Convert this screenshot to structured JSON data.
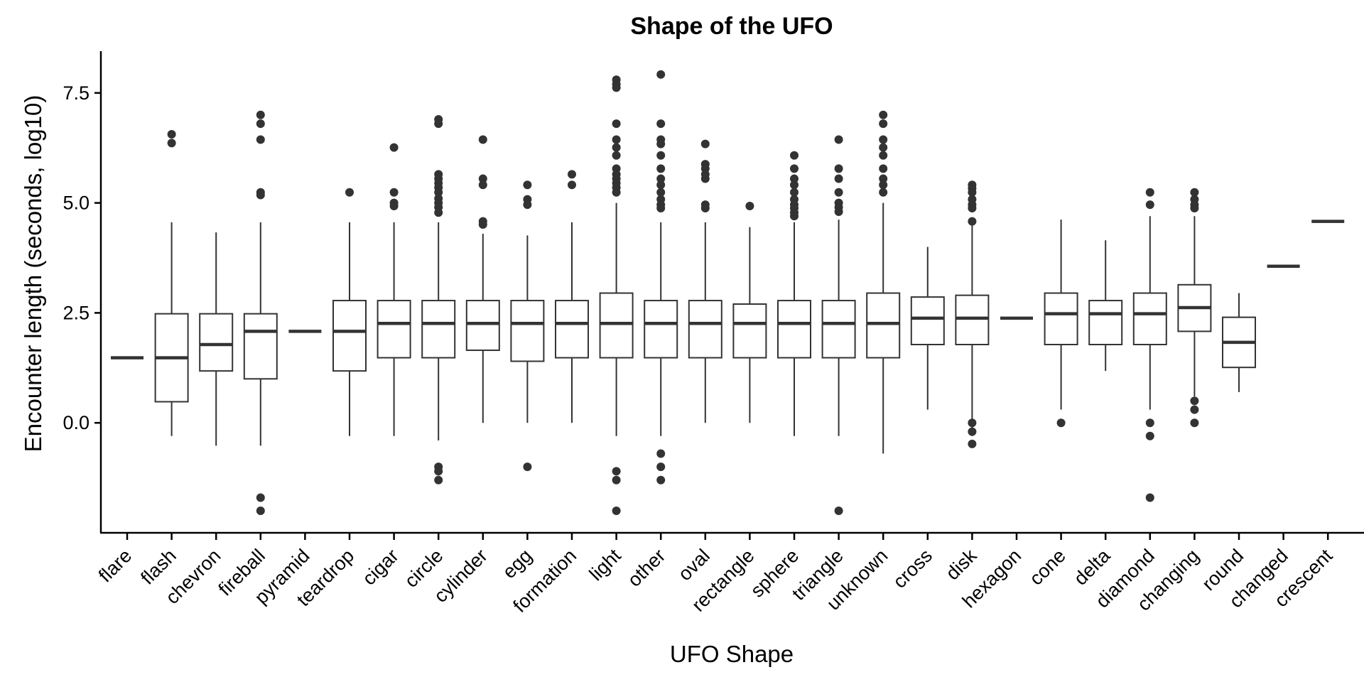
{
  "chart_data": {
    "type": "boxplot",
    "title": "Shape of the UFO",
    "xlabel": "UFO Shape",
    "ylabel": "Encounter length (seconds, log10)",
    "ylim": [
      -2.5,
      8.45
    ],
    "yticks": [
      0.0,
      2.5,
      5.0,
      7.5
    ],
    "ytick_labels": [
      "0.0",
      "2.5",
      "5.0",
      "7.5"
    ],
    "grid": false,
    "colors": {
      "box_fill": "#ffffff",
      "box_stroke": "#333333",
      "outlier": "#333333",
      "axis": "#000000"
    },
    "categories": [
      "flare",
      "flash",
      "chevron",
      "fireball",
      "pyramid",
      "teardrop",
      "cigar",
      "circle",
      "cylinder",
      "egg",
      "formation",
      "light",
      "other",
      "oval",
      "rectangle",
      "sphere",
      "triangle",
      "unknown",
      "cross",
      "disk",
      "hexagon",
      "cone",
      "delta",
      "diamond",
      "changing",
      "round",
      "changed",
      "crescent"
    ],
    "boxes": [
      {
        "min": 1.48,
        "q1": 1.48,
        "median": 1.48,
        "q3": 1.48,
        "max": 1.48,
        "outliers": []
      },
      {
        "min": -0.3,
        "q1": 0.48,
        "median": 1.48,
        "q3": 2.48,
        "max": 4.56,
        "outliers": [
          6.36,
          6.56
        ]
      },
      {
        "min": -0.52,
        "q1": 1.18,
        "median": 1.78,
        "q3": 2.48,
        "max": 4.33,
        "outliers": []
      },
      {
        "min": -0.52,
        "q1": 1.0,
        "median": 2.08,
        "q3": 2.48,
        "max": 4.56,
        "outliers": [
          7.0,
          6.8,
          6.44,
          5.24,
          5.18,
          -1.7,
          -2.0
        ]
      },
      {
        "min": 2.08,
        "q1": 2.08,
        "median": 2.08,
        "q3": 2.08,
        "max": 2.08,
        "outliers": []
      },
      {
        "min": -0.3,
        "q1": 1.18,
        "median": 2.08,
        "q3": 2.78,
        "max": 4.56,
        "outliers": [
          5.24
        ]
      },
      {
        "min": -0.3,
        "q1": 1.48,
        "median": 2.26,
        "q3": 2.78,
        "max": 4.56,
        "outliers": [
          6.26,
          5.24,
          5.0,
          4.93
        ]
      },
      {
        "min": -0.4,
        "q1": 1.48,
        "median": 2.26,
        "q3": 2.78,
        "max": 4.56,
        "outliers": [
          6.9,
          6.8,
          5.65,
          5.55,
          5.45,
          5.35,
          5.24,
          5.1,
          5.0,
          4.9,
          4.78,
          -1.0,
          -1.1,
          -1.3
        ]
      },
      {
        "min": 0.0,
        "q1": 1.65,
        "median": 2.26,
        "q3": 2.78,
        "max": 4.3,
        "outliers": [
          6.44,
          5.55,
          5.41,
          4.58,
          4.51
        ]
      },
      {
        "min": 0.0,
        "q1": 1.4,
        "median": 2.26,
        "q3": 2.78,
        "max": 4.26,
        "outliers": [
          5.41,
          5.08,
          4.96,
          -1.0
        ]
      },
      {
        "min": 0.0,
        "q1": 1.48,
        "median": 2.26,
        "q3": 2.78,
        "max": 4.56,
        "outliers": [
          5.65,
          5.41
        ]
      },
      {
        "min": -0.3,
        "q1": 1.48,
        "median": 2.26,
        "q3": 2.95,
        "max": 5.0,
        "outliers": [
          7.8,
          7.7,
          7.62,
          6.8,
          6.44,
          6.26,
          6.08,
          5.78,
          5.65,
          5.55,
          5.45,
          5.35,
          5.24,
          -1.1,
          -1.3,
          -2.0
        ]
      },
      {
        "min": -0.3,
        "q1": 1.48,
        "median": 2.26,
        "q3": 2.78,
        "max": 4.56,
        "outliers": [
          7.92,
          6.8,
          6.44,
          6.34,
          6.08,
          5.78,
          5.55,
          5.41,
          5.24,
          5.08,
          4.96,
          4.88,
          -0.7,
          -1.0,
          -1.3
        ]
      },
      {
        "min": 0.0,
        "q1": 1.48,
        "median": 2.26,
        "q3": 2.78,
        "max": 4.56,
        "outliers": [
          6.34,
          5.88,
          5.78,
          5.65,
          5.55,
          4.96,
          4.88
        ]
      },
      {
        "min": 0.0,
        "q1": 1.48,
        "median": 2.26,
        "q3": 2.7,
        "max": 4.45,
        "outliers": [
          4.93
        ]
      },
      {
        "min": -0.3,
        "q1": 1.48,
        "median": 2.26,
        "q3": 2.78,
        "max": 4.56,
        "outliers": [
          6.08,
          5.78,
          5.55,
          5.41,
          5.24,
          5.08,
          4.96,
          4.88,
          4.78,
          4.7
        ]
      },
      {
        "min": -0.3,
        "q1": 1.48,
        "median": 2.26,
        "q3": 2.78,
        "max": 4.62,
        "outliers": [
          6.44,
          5.78,
          5.55,
          5.24,
          5.0,
          4.9,
          4.8,
          -2.0
        ]
      },
      {
        "min": -0.7,
        "q1": 1.48,
        "median": 2.26,
        "q3": 2.95,
        "max": 5.0,
        "outliers": [
          7.0,
          6.8,
          6.44,
          6.26,
          6.08,
          5.78,
          5.55,
          5.41,
          5.24
        ]
      },
      {
        "min": 0.3,
        "q1": 1.78,
        "median": 2.38,
        "q3": 2.86,
        "max": 4.0,
        "outliers": []
      },
      {
        "min": -0.3,
        "q1": 1.78,
        "median": 2.38,
        "q3": 2.9,
        "max": 4.5,
        "outliers": [
          5.41,
          5.33,
          5.24,
          5.08,
          4.96,
          4.88,
          4.58,
          0.0,
          -0.2,
          -0.48
        ]
      },
      {
        "min": 2.38,
        "q1": 2.38,
        "median": 2.38,
        "q3": 2.38,
        "max": 2.38,
        "outliers": []
      },
      {
        "min": 0.3,
        "q1": 1.78,
        "median": 2.48,
        "q3": 2.95,
        "max": 4.62,
        "outliers": [
          0.0
        ]
      },
      {
        "min": 1.18,
        "q1": 1.78,
        "median": 2.48,
        "q3": 2.78,
        "max": 4.15,
        "outliers": []
      },
      {
        "min": 0.3,
        "q1": 1.78,
        "median": 2.48,
        "q3": 2.95,
        "max": 4.7,
        "outliers": [
          5.24,
          4.96,
          0.0,
          -0.3,
          -1.7
        ]
      },
      {
        "min": 0.6,
        "q1": 2.08,
        "median": 2.62,
        "q3": 3.14,
        "max": 4.7,
        "outliers": [
          5.24,
          5.08,
          4.96,
          4.88,
          0.5,
          0.3,
          0.0
        ]
      },
      {
        "min": 0.7,
        "q1": 1.26,
        "median": 1.83,
        "q3": 2.4,
        "max": 2.95,
        "outliers": []
      },
      {
        "min": 3.56,
        "q1": 3.56,
        "median": 3.56,
        "q3": 3.56,
        "max": 3.56,
        "outliers": []
      },
      {
        "min": 4.58,
        "q1": 4.58,
        "median": 4.58,
        "q3": 4.58,
        "max": 4.58,
        "outliers": []
      }
    ]
  }
}
